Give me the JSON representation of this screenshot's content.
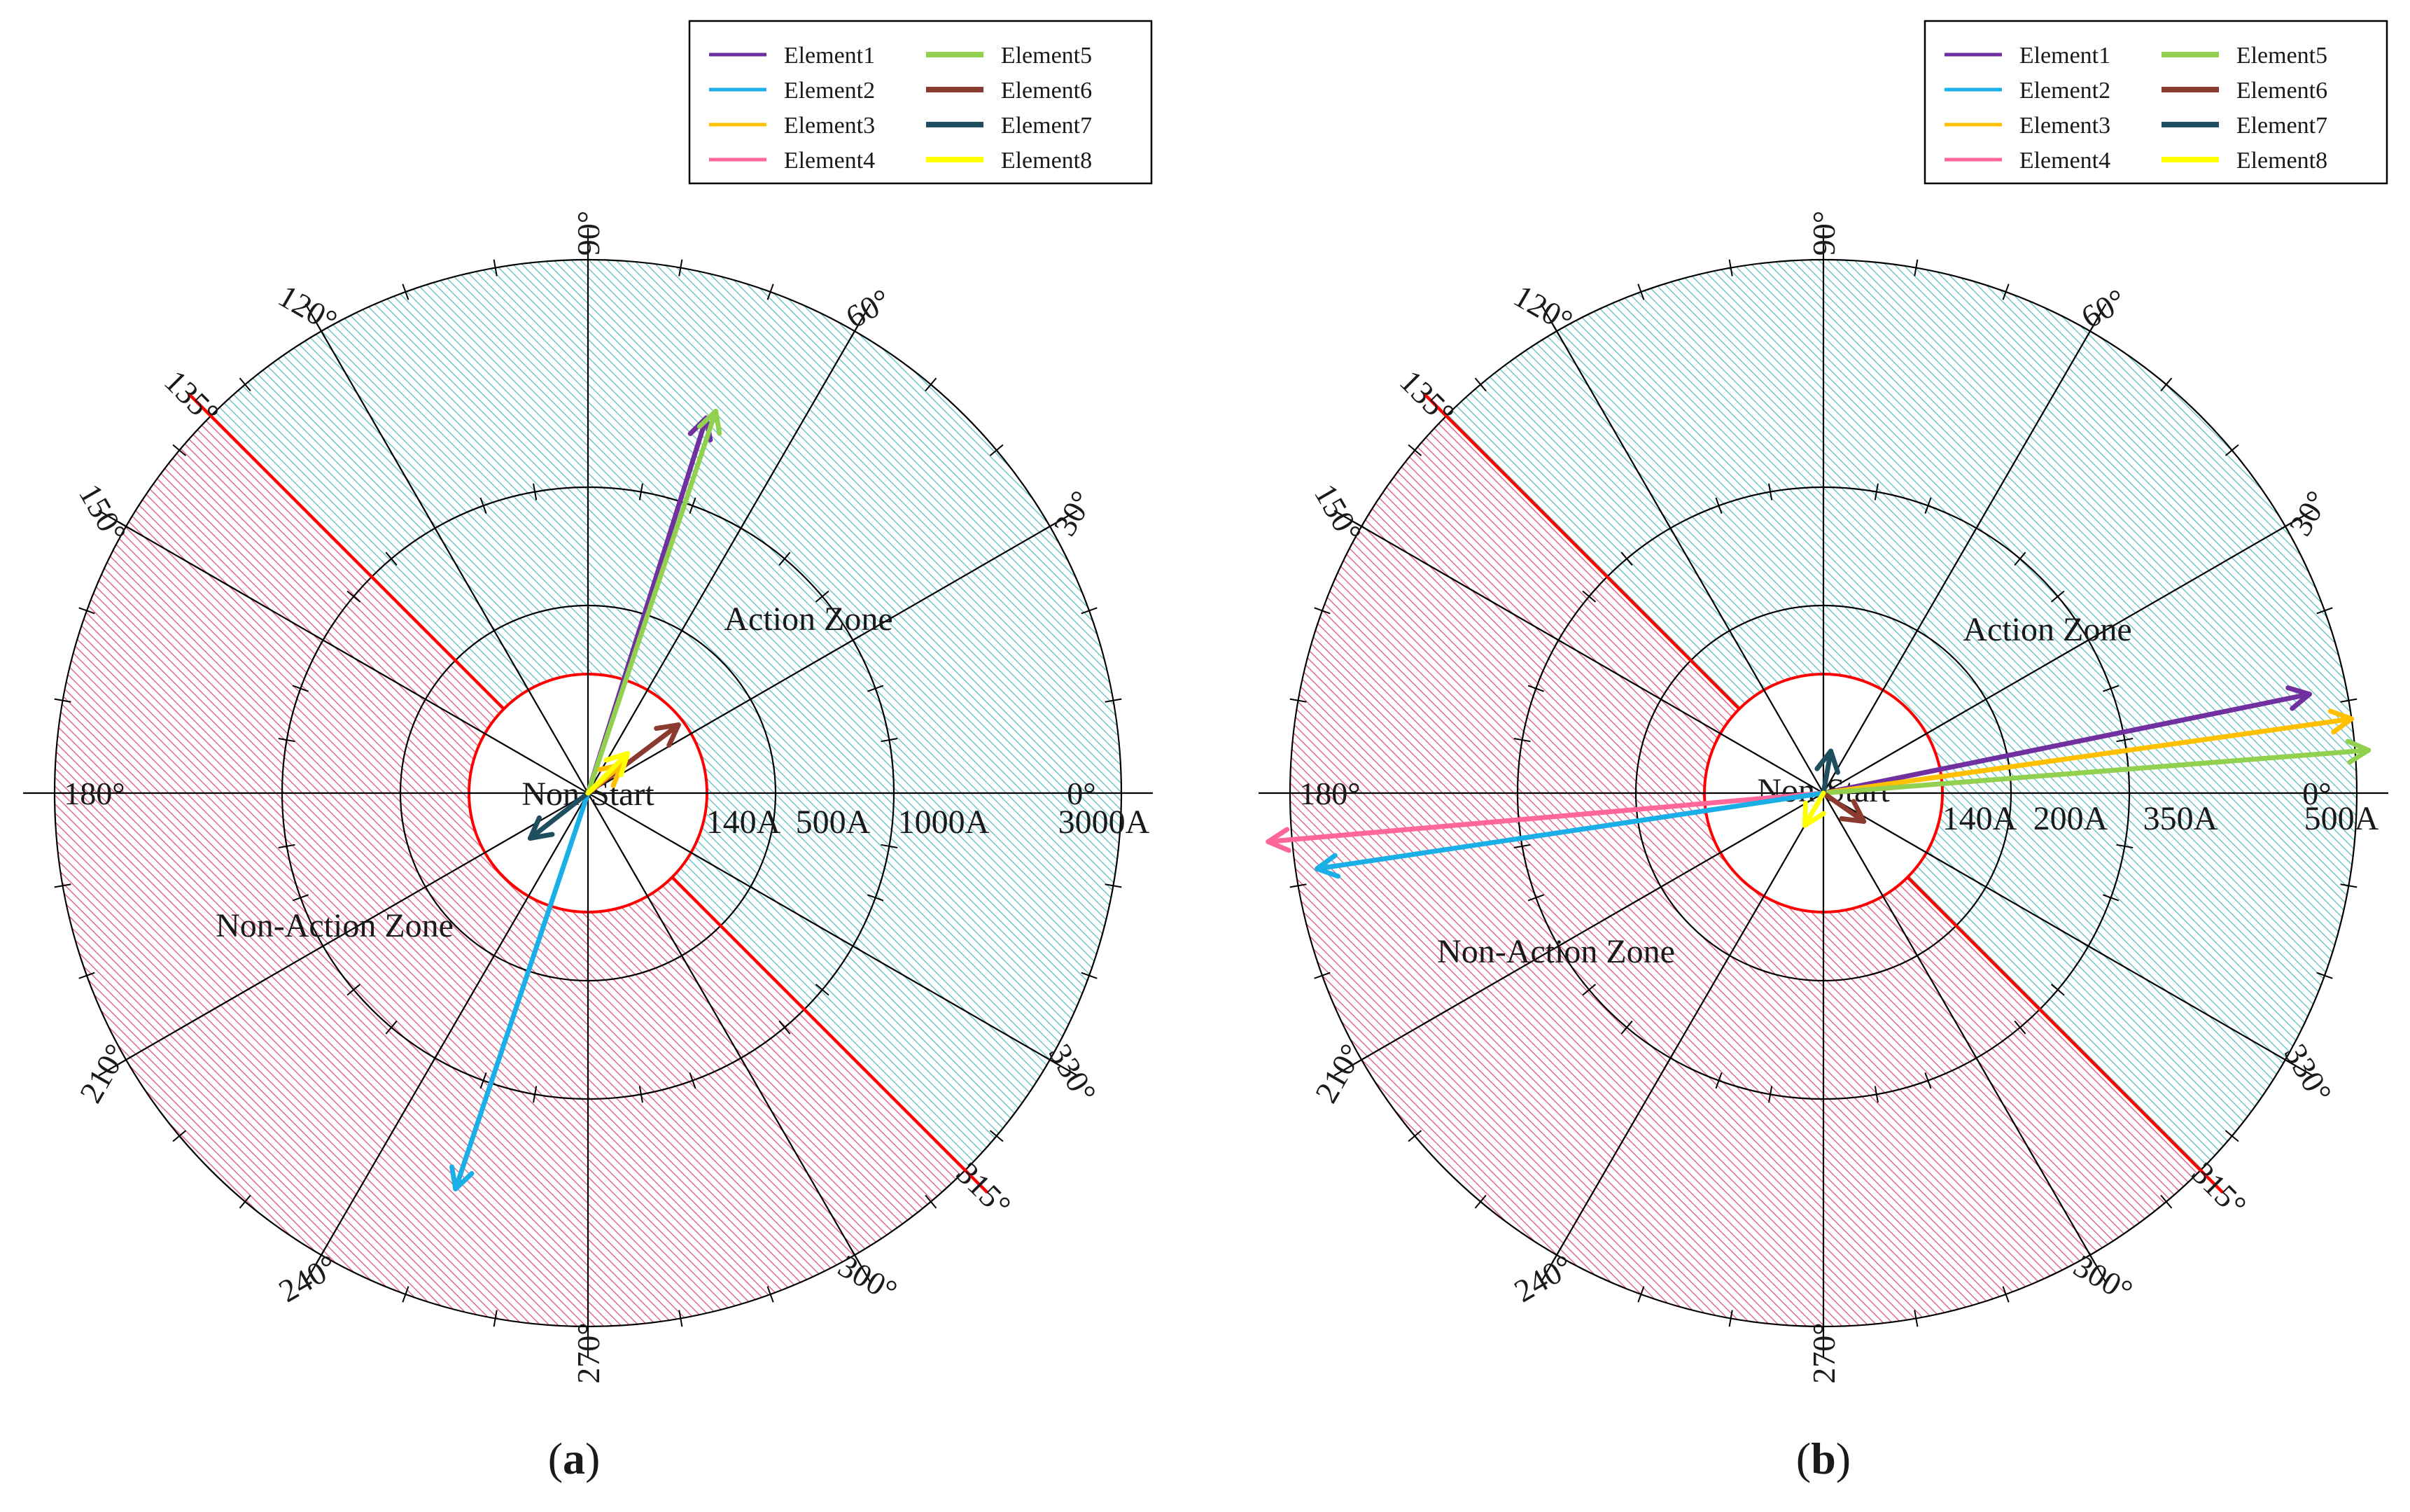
{
  "chart_data": [
    {
      "type": "polar-vector",
      "panel_label": "a",
      "zone_labels": {
        "action": "Action Zone",
        "non_action": "Non-Action Zone",
        "non_start": "Non-Start"
      },
      "rings": [
        {
          "label": "140A",
          "value": 140
        },
        {
          "label": "500A",
          "value": 500
        },
        {
          "label": "1000A",
          "value": 1000
        },
        {
          "label": "3000A",
          "value": 3000
        }
      ],
      "angle_labels": [
        "0°",
        "30°",
        "60°",
        "90°",
        "120°",
        "135°",
        "150°",
        "180°",
        "210°",
        "240°",
        "270°",
        "300°",
        "315°",
        "330°"
      ],
      "action_zone_range_deg": [
        -45,
        135
      ],
      "legend": [
        {
          "name": "Element1",
          "color": "#7030a0"
        },
        {
          "name": "Element2",
          "color": "#1aafe6"
        },
        {
          "name": "Element3",
          "color": "#ffc000"
        },
        {
          "name": "Element4",
          "color": "#ff6699"
        },
        {
          "name": "Element5",
          "color": "#92d050"
        },
        {
          "name": "Element6",
          "color": "#8b3a2f"
        },
        {
          "name": "Element7",
          "color": "#1f4e5f"
        },
        {
          "name": "Element8",
          "color": "#ffff00"
        }
      ],
      "vectors": [
        {
          "name": "Element1",
          "color": "#7030a0",
          "angle_deg": 72.5,
          "magnitude_ring": 2.95
        },
        {
          "name": "Element5",
          "color": "#92d050",
          "angle_deg": 71.5,
          "magnitude_ring": 3.02
        },
        {
          "name": "Element2",
          "color": "#1aafe6",
          "angle_deg": 251.5,
          "magnitude_ring": 3.13
        },
        {
          "name": "Element6",
          "color": "#8b3a2f",
          "angle_deg": 37,
          "magnitude_ring": 0.85
        },
        {
          "name": "Element7",
          "color": "#1f4e5f",
          "angle_deg": 218,
          "magnitude_ring": 0.55
        },
        {
          "name": "Element3",
          "color": "#ffc000",
          "angle_deg": 40,
          "magnitude_ring": 0.33
        },
        {
          "name": "Element8",
          "color": "#ffff00",
          "angle_deg": 45,
          "magnitude_ring": 0.42
        }
      ]
    },
    {
      "type": "polar-vector",
      "panel_label": "b",
      "zone_labels": {
        "action": "Action Zone",
        "non_action": "Non-Action Zone",
        "non_start": "Non-Start"
      },
      "rings": [
        {
          "label": "140A",
          "value": 140
        },
        {
          "label": "200A",
          "value": 200
        },
        {
          "label": "350A",
          "value": 350
        },
        {
          "label": "500A",
          "value": 500
        }
      ],
      "angle_labels": [
        "0°",
        "30°",
        "60°",
        "90°",
        "120°",
        "135°",
        "150°",
        "180°",
        "210°",
        "240°",
        "270°",
        "300°",
        "315°",
        "330°"
      ],
      "action_zone_range_deg": [
        -45,
        135
      ],
      "legend": [
        {
          "name": "Element1",
          "color": "#7030a0"
        },
        {
          "name": "Element2",
          "color": "#1aafe6"
        },
        {
          "name": "Element3",
          "color": "#ffc000"
        },
        {
          "name": "Element4",
          "color": "#ff6699"
        },
        {
          "name": "Element5",
          "color": "#92d050"
        },
        {
          "name": "Element6",
          "color": "#8b3a2f"
        },
        {
          "name": "Element7",
          "color": "#1f4e5f"
        },
        {
          "name": "Element8",
          "color": "#ffff00"
        }
      ],
      "vectors": [
        {
          "name": "Element1",
          "color": "#7030a0",
          "angle_deg": 11.5,
          "magnitude_ring": 3.72
        },
        {
          "name": "Element3",
          "color": "#ffc000",
          "angle_deg": 8,
          "magnitude_ring": 4.0
        },
        {
          "name": "Element5",
          "color": "#92d050",
          "angle_deg": 4.5,
          "magnitude_ring": 4.1
        },
        {
          "name": "Element4",
          "color": "#ff6699",
          "angle_deg": 185,
          "magnitude_ring": 4.18
        },
        {
          "name": "Element2",
          "color": "#1aafe6",
          "angle_deg": 188.5,
          "magnitude_ring": 3.84
        },
        {
          "name": "Element7",
          "color": "#1f4e5f",
          "angle_deg": 80,
          "magnitude_ring": 0.32
        },
        {
          "name": "Element6",
          "color": "#8b3a2f",
          "angle_deg": -35,
          "magnitude_ring": 0.37
        },
        {
          "name": "Element8",
          "color": "#ffff00",
          "angle_deg": 240,
          "magnitude_ring": 0.28
        }
      ]
    }
  ]
}
